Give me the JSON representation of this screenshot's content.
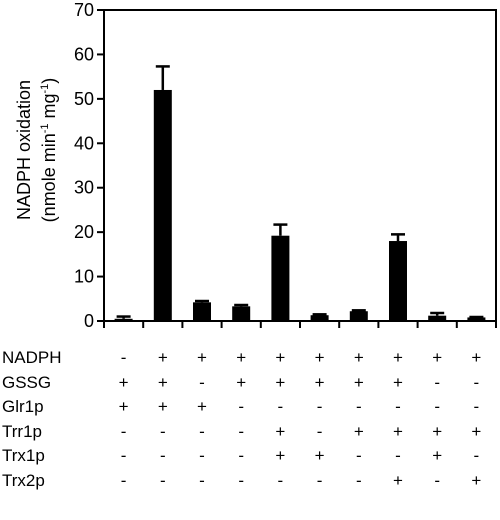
{
  "chart_data": {
    "type": "bar",
    "ylabel_line1": "NADPH oxidation",
    "ylabel_line2_parts": [
      "(nmole min",
      "-1",
      " mg",
      "-1",
      ")"
    ],
    "yticks": [
      "0",
      "10",
      "20",
      "30",
      "40",
      "50",
      "60",
      "70"
    ],
    "ylim": [
      0,
      70
    ],
    "values": [
      0.5,
      52.0,
      4.2,
      3.3,
      19.2,
      1.3,
      2.2,
      18.0,
      1.2,
      0.8
    ],
    "errors": [
      0.5,
      5.3,
      0.3,
      0.3,
      2.5,
      0.2,
      0.2,
      1.5,
      0.6,
      0.1
    ],
    "bar_color": "#000000",
    "conditions": [
      {
        "label": "NADPH",
        "signs": [
          "-",
          "+",
          "+",
          "+",
          "+",
          "+",
          "+",
          "+",
          "+",
          "+"
        ]
      },
      {
        "label": "GSSG",
        "signs": [
          "+",
          "+",
          "-",
          "+",
          "+",
          "+",
          "+",
          "+",
          "-",
          "-"
        ]
      },
      {
        "label": "Glr1p",
        "signs": [
          "+",
          "+",
          "+",
          "-",
          "-",
          "-",
          "-",
          "-",
          "-",
          "-"
        ]
      },
      {
        "label": "Trr1p",
        "signs": [
          "-",
          "-",
          "-",
          "-",
          "+",
          "-",
          "+",
          "+",
          "+",
          "+"
        ]
      },
      {
        "label": "Trx1p",
        "signs": [
          "-",
          "-",
          "-",
          "-",
          "+",
          "+",
          "-",
          "-",
          "+",
          "-"
        ]
      },
      {
        "label": "Trx2p",
        "signs": [
          "-",
          "-",
          "-",
          "-",
          "-",
          "-",
          "-",
          "+",
          "-",
          "+"
        ]
      }
    ]
  }
}
